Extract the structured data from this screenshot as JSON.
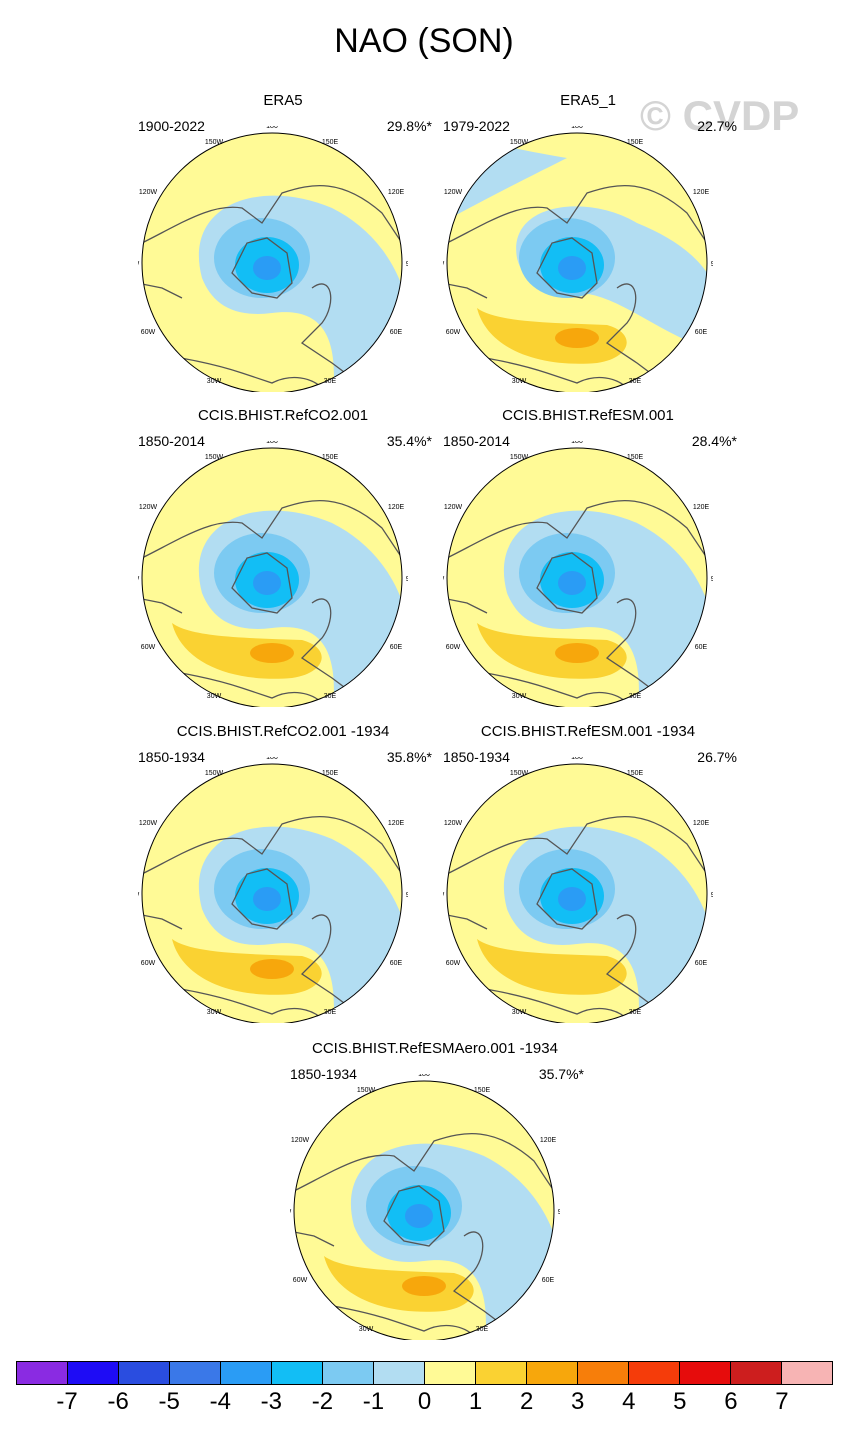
{
  "title": "NAO (SON)",
  "watermark": "© CVDP",
  "panels": [
    {
      "title": "ERA5",
      "period": "1900-2022",
      "pct": "29.8%*"
    },
    {
      "title": "ERA5_1",
      "period": "1979-2022",
      "pct": "22.7%"
    },
    {
      "title": "CCIS.BHIST.RefCO2.001",
      "period": "1850-2014",
      "pct": "35.4%*"
    },
    {
      "title": "CCIS.BHIST.RefESM.001",
      "period": "1850-2014",
      "pct": "28.4%*"
    },
    {
      "title": "CCIS.BHIST.RefCO2.001 -1934",
      "period": "1850-1934",
      "pct": "35.8%*"
    },
    {
      "title": "CCIS.BHIST.RefESM.001 -1934",
      "period": "1850-1934",
      "pct": "26.7%"
    },
    {
      "title": "CCIS.BHIST.RefESMAero.001 -1934",
      "period": "1850-1934",
      "pct": "35.7%*"
    }
  ],
  "map_labels": {
    "top": "180",
    "bottom": "0",
    "upper_left": "150W",
    "upper_right": "150E",
    "left_upper": "120W",
    "right_upper": "120E",
    "left": "90W",
    "right": "90E",
    "left_lower": "60W",
    "right_lower": "60E",
    "lower_left": "30W",
    "lower_right": "30E"
  },
  "colorbar": {
    "colors": [
      "#8a2be2",
      "#1e0cf5",
      "#2a4de0",
      "#3a78e8",
      "#2a9cf5",
      "#12bef5",
      "#7ccaf2",
      "#b2ddf2",
      "#fffa96",
      "#fad232",
      "#f7a70c",
      "#f77e0a",
      "#f53c0a",
      "#e60c0c",
      "#cd1e1e",
      "#f7b4b4"
    ],
    "tick_labels": [
      "-7",
      "-6",
      "-5",
      "-4",
      "-3",
      "-2",
      "-1",
      "0",
      "1",
      "2",
      "3",
      "4",
      "5",
      "6",
      "7"
    ]
  }
}
